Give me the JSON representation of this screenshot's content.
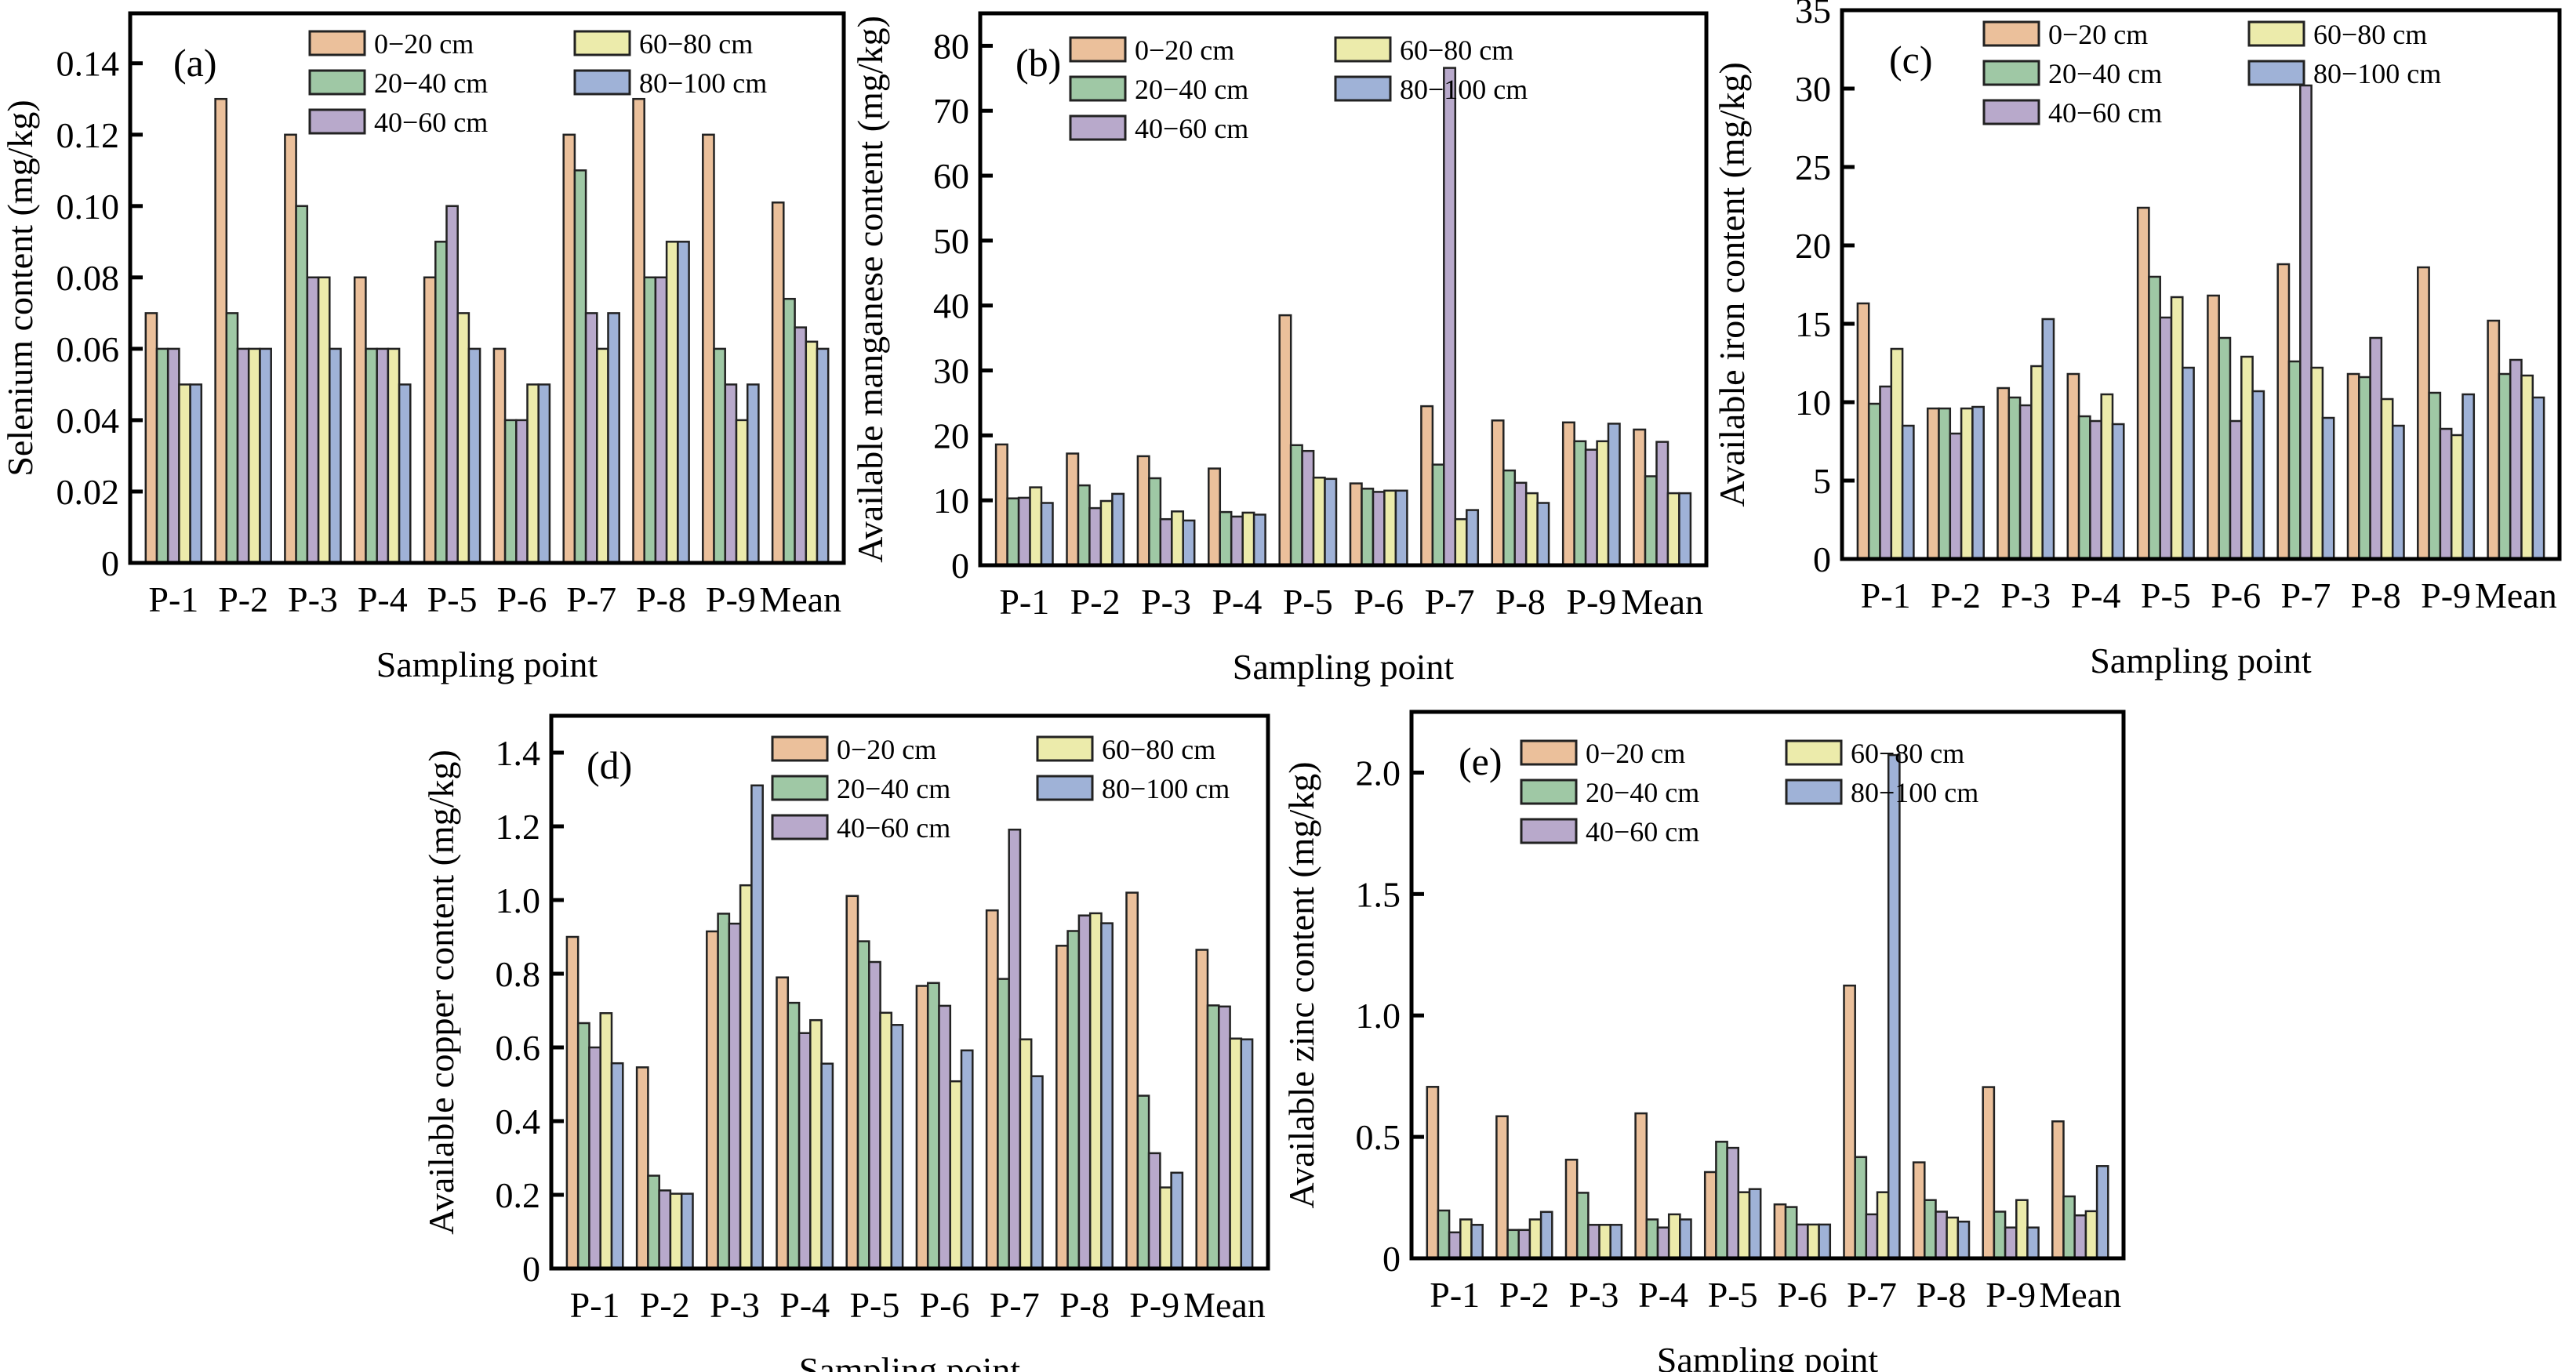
{
  "figure": {
    "series_names": [
      "0−20 cm",
      "20−40 cm",
      "40−60 cm",
      "60−80 cm",
      "80−100 cm"
    ],
    "series_colors": [
      "#ebc09b",
      "#9fc8a5",
      "#b8a9cb",
      "#ecebab",
      "#9fb2d7"
    ]
  },
  "chart_data": [
    {
      "id": "a",
      "type": "bar",
      "panel_label": "(a)",
      "title": "",
      "xlabel": "Sampling point",
      "ylabel": "Selenium content (mg/kg)",
      "categories": [
        "P-1",
        "P-2",
        "P-3",
        "P-4",
        "P-5",
        "P-6",
        "P-7",
        "P-8",
        "P-9",
        "Mean"
      ],
      "ylim": [
        0,
        0.154
      ],
      "yticks": [
        0,
        0.02,
        0.04,
        0.06,
        0.08,
        0.1,
        0.12,
        0.14
      ],
      "ytick_labels": [
        "0",
        "0.02",
        "0.04",
        "0.06",
        "0.08",
        "0.10",
        "0.12",
        "0.14"
      ],
      "legend": "top-center",
      "grid": false,
      "series": [
        {
          "name": "0−20 cm",
          "values": [
            0.07,
            0.13,
            0.12,
            0.08,
            0.08,
            0.06,
            0.12,
            0.13,
            0.12,
            0.101
          ]
        },
        {
          "name": "20−40 cm",
          "values": [
            0.06,
            0.07,
            0.1,
            0.06,
            0.09,
            0.04,
            0.11,
            0.08,
            0.06,
            0.074
          ]
        },
        {
          "name": "40−60 cm",
          "values": [
            0.06,
            0.06,
            0.08,
            0.06,
            0.1,
            0.04,
            0.07,
            0.08,
            0.05,
            0.066
          ]
        },
        {
          "name": "60−80 cm",
          "values": [
            0.05,
            0.06,
            0.08,
            0.06,
            0.07,
            0.05,
            0.06,
            0.09,
            0.04,
            0.062
          ]
        },
        {
          "name": "80−100 cm",
          "values": [
            0.05,
            0.06,
            0.06,
            0.05,
            0.06,
            0.05,
            0.07,
            0.09,
            0.05,
            0.06
          ]
        }
      ]
    },
    {
      "id": "b",
      "type": "bar",
      "panel_label": "(b)",
      "title": "",
      "xlabel": "Sampling point",
      "ylabel": "Available manganese content (mg/kg)",
      "categories": [
        "P-1",
        "P-2",
        "P-3",
        "P-4",
        "P-5",
        "P-6",
        "P-7",
        "P-8",
        "P-9",
        "Mean"
      ],
      "ylim": [
        0,
        85
      ],
      "yticks": [
        0,
        10,
        20,
        30,
        40,
        50,
        60,
        70,
        80
      ],
      "ytick_labels": [
        "0",
        "10",
        "20",
        "30",
        "40",
        "50",
        "60",
        "70",
        "80"
      ],
      "legend": "top-center",
      "grid": false,
      "series": [
        {
          "name": "0−20 cm",
          "values": [
            18.6,
            17.2,
            16.8,
            14.9,
            38.5,
            12.6,
            24.5,
            22.3,
            22.0,
            20.9
          ]
        },
        {
          "name": "20−40 cm",
          "values": [
            10.3,
            12.3,
            13.4,
            8.2,
            18.5,
            11.8,
            15.5,
            14.6,
            19.1,
            13.7
          ]
        },
        {
          "name": "40−60 cm",
          "values": [
            10.4,
            8.8,
            7.1,
            7.5,
            17.6,
            11.3,
            76.6,
            12.7,
            17.8,
            19.0
          ]
        },
        {
          "name": "60−80 cm",
          "values": [
            12.0,
            9.9,
            8.3,
            8.1,
            13.5,
            11.5,
            7.1,
            11.1,
            19.1,
            11.1
          ]
        },
        {
          "name": "80−100 cm",
          "values": [
            9.6,
            11.0,
            6.9,
            7.8,
            13.3,
            11.5,
            8.5,
            9.6,
            21.8,
            11.1
          ]
        }
      ]
    },
    {
      "id": "c",
      "type": "bar",
      "panel_label": "(c)",
      "title": "",
      "xlabel": "Sampling point",
      "ylabel": "Available iron content (mg/kg)",
      "categories": [
        "P-1",
        "P-2",
        "P-3",
        "P-4",
        "P-5",
        "P-6",
        "P-7",
        "P-8",
        "P-9",
        "Mean"
      ],
      "ylim": [
        0,
        35
      ],
      "yticks": [
        0,
        5,
        10,
        15,
        20,
        25,
        30,
        35
      ],
      "ytick_labels": [
        "0",
        "5",
        "10",
        "15",
        "20",
        "25",
        "30",
        "35"
      ],
      "legend": "top-center",
      "grid": false,
      "series": [
        {
          "name": "0−20 cm",
          "values": [
            16.3,
            9.6,
            10.9,
            11.8,
            22.4,
            16.8,
            18.8,
            11.8,
            18.6,
            15.2
          ]
        },
        {
          "name": "20−40 cm",
          "values": [
            9.9,
            9.6,
            10.3,
            9.1,
            18.0,
            14.1,
            12.6,
            11.6,
            10.6,
            11.8
          ]
        },
        {
          "name": "40−60 cm",
          "values": [
            11.0,
            8.0,
            9.8,
            8.8,
            15.4,
            8.8,
            30.2,
            14.1,
            8.3,
            12.7
          ]
        },
        {
          "name": "60−80 cm",
          "values": [
            13.4,
            9.6,
            12.3,
            10.5,
            16.7,
            12.9,
            12.2,
            10.2,
            7.9,
            11.7
          ]
        },
        {
          "name": "80−100 cm",
          "values": [
            8.5,
            9.7,
            15.3,
            8.6,
            12.2,
            10.7,
            9.0,
            8.5,
            10.5,
            10.3
          ]
        }
      ]
    },
    {
      "id": "d",
      "type": "bar",
      "panel_label": "(d)",
      "title": "",
      "xlabel": "Sampling point",
      "ylabel": "Available copper content (mg/kg)",
      "categories": [
        "P-1",
        "P-2",
        "P-3",
        "P-4",
        "P-5",
        "P-6",
        "P-7",
        "P-8",
        "P-9",
        "Mean"
      ],
      "ylim": [
        0,
        1.5
      ],
      "yticks": [
        0,
        0.2,
        0.4,
        0.6,
        0.8,
        1.0,
        1.2,
        1.4
      ],
      "ytick_labels": [
        "0",
        "0.2",
        "0.4",
        "0.6",
        "0.8",
        "1.0",
        "1.2",
        "1.4"
      ],
      "legend": "top-center",
      "grid": false,
      "series": [
        {
          "name": "0−20 cm",
          "values": [
            0.9,
            0.546,
            0.915,
            0.79,
            1.011,
            0.767,
            0.972,
            0.876,
            1.02,
            0.865
          ]
        },
        {
          "name": "20−40 cm",
          "values": [
            0.666,
            0.252,
            0.963,
            0.721,
            0.888,
            0.775,
            0.786,
            0.916,
            0.469,
            0.714
          ]
        },
        {
          "name": "40−60 cm",
          "values": [
            0.6,
            0.212,
            0.936,
            0.639,
            0.832,
            0.713,
            1.191,
            0.958,
            0.313,
            0.711
          ]
        },
        {
          "name": "60−80 cm",
          "values": [
            0.693,
            0.203,
            1.04,
            0.674,
            0.694,
            0.508,
            0.622,
            0.964,
            0.22,
            0.624
          ]
        },
        {
          "name": "80−100 cm",
          "values": [
            0.557,
            0.203,
            1.311,
            0.556,
            0.661,
            0.592,
            0.522,
            0.937,
            0.26,
            0.622
          ]
        }
      ]
    },
    {
      "id": "e",
      "type": "bar",
      "panel_label": "(e)",
      "title": "",
      "xlabel": "Sampling point",
      "ylabel": "Available zinc content (mg/kg)",
      "categories": [
        "P-1",
        "P-2",
        "P-3",
        "P-4",
        "P-5",
        "P-6",
        "P-7",
        "P-8",
        "P-9",
        "Mean"
      ],
      "ylim": [
        0,
        2.25
      ],
      "yticks": [
        0,
        0.5,
        1.0,
        1.5,
        2.0
      ],
      "ytick_labels": [
        "0",
        "0.5",
        "1.0",
        "1.5",
        "2.0"
      ],
      "legend": "top-center",
      "grid": false,
      "series": [
        {
          "name": "0−20 cm",
          "values": [
            0.706,
            0.585,
            0.406,
            0.597,
            0.355,
            0.222,
            1.123,
            0.395,
            0.705,
            0.564
          ]
        },
        {
          "name": "20−40 cm",
          "values": [
            0.197,
            0.117,
            0.27,
            0.16,
            0.48,
            0.211,
            0.417,
            0.24,
            0.192,
            0.255
          ]
        },
        {
          "name": "40−60 cm",
          "values": [
            0.107,
            0.117,
            0.138,
            0.127,
            0.455,
            0.139,
            0.181,
            0.192,
            0.127,
            0.177
          ]
        },
        {
          "name": "60−80 cm",
          "values": [
            0.16,
            0.16,
            0.138,
            0.181,
            0.272,
            0.139,
            0.272,
            0.168,
            0.24,
            0.194
          ]
        },
        {
          "name": "80−100 cm",
          "values": [
            0.138,
            0.191,
            0.138,
            0.16,
            0.285,
            0.139,
            2.072,
            0.151,
            0.127,
            0.38
          ]
        }
      ]
    }
  ]
}
